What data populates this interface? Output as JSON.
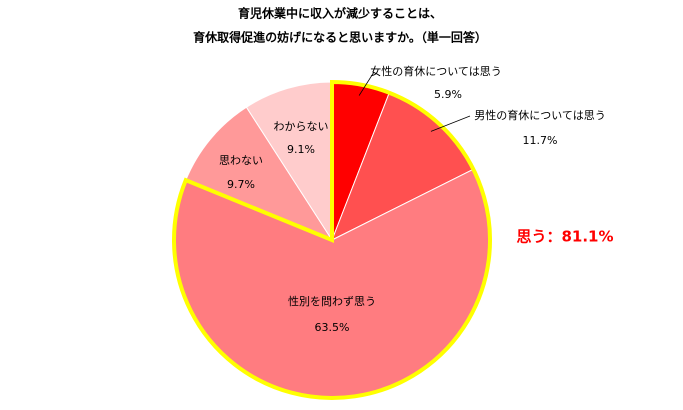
{
  "chart_data": {
    "type": "pie",
    "title": [
      "育児休業中に収入が減少することは、",
      "育休取得促進の妨げになると思いますか。（単一回答）"
    ],
    "categories": [
      "女性の育休については思う",
      "男性の育休については思う",
      "性別を問わず思う",
      "思わない",
      "わからない"
    ],
    "values": [
      5.9,
      11.7,
      63.5,
      9.7,
      9.1
    ],
    "value_labels": [
      "5.9%",
      "11.7%",
      "63.5%",
      "9.7%",
      "9.1%"
    ],
    "colors": [
      "#ff0000",
      "#ff5050",
      "#ff7c80",
      "#ff9999",
      "#ffcccc"
    ],
    "annotation": "思う：81.1%",
    "highlight_color": "#ffff00"
  }
}
